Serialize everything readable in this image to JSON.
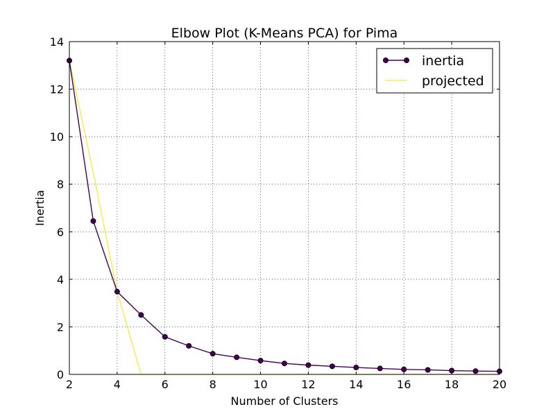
{
  "chart_data": {
    "type": "line",
    "title": "Elbow Plot (K-Means PCA) for Pima",
    "xlabel": "Number of Clusters",
    "ylabel": "Inertia",
    "xlim": [
      2,
      20
    ],
    "ylim": [
      0,
      14
    ],
    "xticks": [
      2,
      4,
      6,
      8,
      10,
      12,
      14,
      16,
      18,
      20
    ],
    "yticks": [
      0,
      2,
      4,
      6,
      8,
      10,
      12,
      14
    ],
    "grid": true,
    "legend_position": "top-right",
    "series": [
      {
        "name": "inertia",
        "color": "#440154",
        "marker": "circle",
        "x": [
          2,
          3,
          4,
          5,
          6,
          7,
          8,
          9,
          10,
          11,
          12,
          13,
          14,
          15,
          16,
          17,
          18,
          19,
          20
        ],
        "y": [
          13.2,
          6.45,
          3.48,
          2.5,
          1.58,
          1.2,
          0.87,
          0.72,
          0.58,
          0.46,
          0.39,
          0.34,
          0.29,
          0.25,
          0.21,
          0.19,
          0.16,
          0.14,
          0.13
        ]
      },
      {
        "name": "projected",
        "color": "#fde725",
        "marker": "none",
        "x": [
          2,
          3,
          4,
          5,
          20
        ],
        "y": [
          13.2,
          8.5,
          3.48,
          0,
          0
        ]
      }
    ]
  }
}
